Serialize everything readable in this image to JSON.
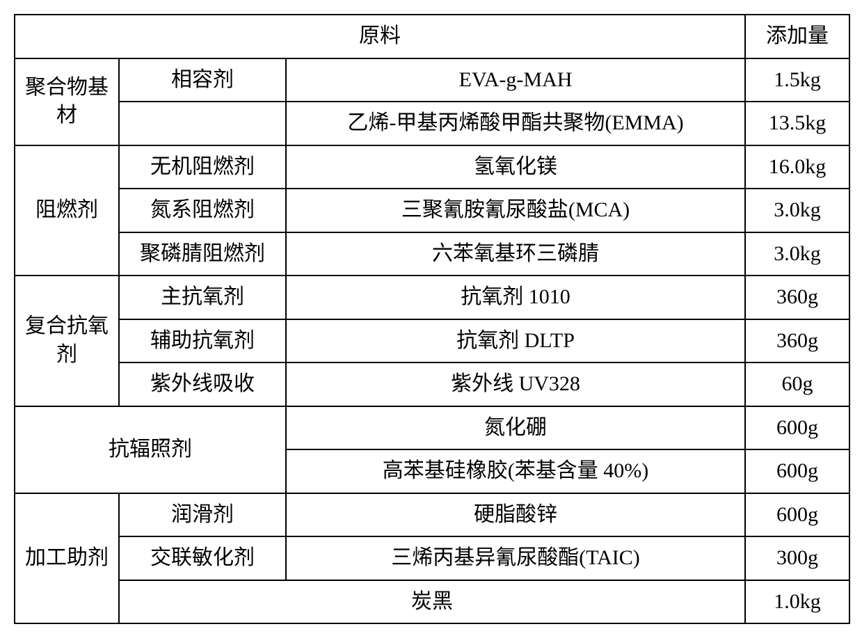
{
  "header": {
    "materials": "原料",
    "amount": "添加量"
  },
  "groups": [
    {
      "name": "聚合物基材",
      "rows": [
        {
          "sub": "相容剂",
          "material": "EVA-g-MAH",
          "amount": "1.5kg"
        },
        {
          "sub": "",
          "material": "乙烯-甲基丙烯酸甲酯共聚物(EMMA)",
          "amount": "13.5kg"
        }
      ]
    },
    {
      "name": "阻燃剂",
      "rows": [
        {
          "sub": "无机阻燃剂",
          "material": "氢氧化镁",
          "amount": "16.0kg"
        },
        {
          "sub": "氮系阻燃剂",
          "material": "三聚氰胺氰尿酸盐(MCA)",
          "amount": "3.0kg"
        },
        {
          "sub": "聚磷腈阻燃剂",
          "material": "六苯氧基环三磷腈",
          "amount": "3.0kg"
        }
      ]
    },
    {
      "name": "复合抗氧剂",
      "rows": [
        {
          "sub": "主抗氧剂",
          "material": "抗氧剂 1010",
          "amount": "360g"
        },
        {
          "sub": "辅助抗氧剂",
          "material": "抗氧剂 DLTP",
          "amount": "360g"
        },
        {
          "sub": "紫外线吸收",
          "material": "紫外线 UV328",
          "amount": "60g"
        }
      ]
    },
    {
      "name": "抗辐照剂",
      "span2": true,
      "rows": [
        {
          "material": "氮化硼",
          "amount": "600g"
        },
        {
          "material": "高苯基硅橡胶(苯基含量 40%)",
          "amount": "600g"
        }
      ]
    },
    {
      "name": "加工助剂",
      "rows": [
        {
          "sub": "润滑剂",
          "material": "硬脂酸锌",
          "amount": "600g"
        },
        {
          "sub": "交联敏化剂",
          "material": "三烯丙基异氰尿酸酯(TAIC)",
          "amount": "300g"
        },
        {
          "sub": "",
          "material": "炭黑",
          "amount": "1.0kg",
          "subSpan2": true
        }
      ]
    }
  ]
}
